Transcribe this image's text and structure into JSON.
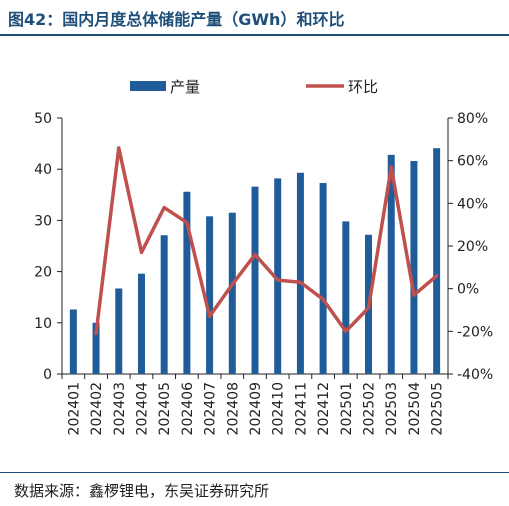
{
  "title": "图42：国内月度总体储能产量（GWh）和环比",
  "source": "数据来源：鑫椤锂电，东吴证券研究所",
  "chart_data": {
    "type": "bar",
    "categories": [
      "202401",
      "202402",
      "202403",
      "202404",
      "202405",
      "202406",
      "202407",
      "202408",
      "202409",
      "202410",
      "202411",
      "202412",
      "202501",
      "202502",
      "202503",
      "202504",
      "202505"
    ],
    "series": [
      {
        "name": "产量",
        "type": "bar",
        "axis": "left",
        "color": "#1f5c99",
        "values": [
          12.6,
          10.0,
          16.7,
          19.6,
          27.1,
          35.6,
          30.8,
          31.5,
          36.6,
          38.2,
          39.3,
          37.3,
          29.8,
          27.2,
          42.8,
          41.6,
          44.1
        ]
      },
      {
        "name": "环比",
        "type": "line",
        "axis": "right",
        "color": "#c0504d",
        "values": [
          null,
          -21,
          66,
          17,
          38,
          31,
          -13,
          2,
          16,
          4,
          3,
          -5,
          -20,
          -9,
          57,
          -3,
          6
        ]
      }
    ],
    "y_left": {
      "min": 0,
      "max": 50,
      "ticks": [
        0,
        10,
        20,
        30,
        40,
        50
      ]
    },
    "y_right": {
      "min": -40,
      "max": 80,
      "ticks": [
        "-40%",
        "-20%",
        "0%",
        "20%",
        "40%",
        "60%",
        "80%"
      ]
    },
    "legend": "top",
    "grid": false
  }
}
